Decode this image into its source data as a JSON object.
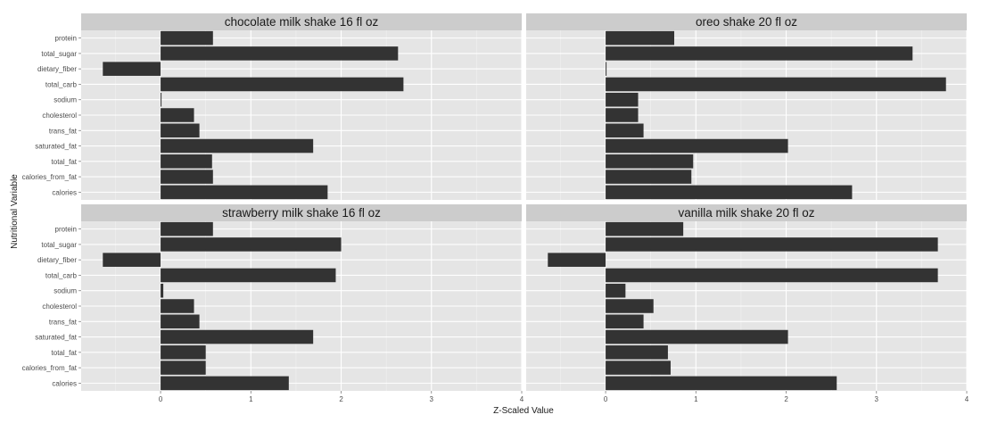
{
  "chart_data": {
    "type": "bar",
    "orientation": "horizontal",
    "facets": "2x2",
    "xlabel": "Z-Scaled Value",
    "ylabel": "Nutritional Variable",
    "xlim": [
      -0.88,
      4.0
    ],
    "xticks": [
      0,
      1,
      2,
      3,
      4
    ],
    "grid": true,
    "categories": [
      "protein",
      "total_sugar",
      "dietary_fiber",
      "total_carb",
      "sodium",
      "cholesterol",
      "trans_fat",
      "saturated_fat",
      "total_fat",
      "calories_from_fat",
      "calories"
    ],
    "panels": [
      {
        "title": "chocolate milk shake 16 fl oz",
        "values": [
          0.58,
          2.63,
          -0.64,
          2.69,
          0.01,
          0.37,
          0.43,
          1.69,
          0.57,
          0.58,
          1.85
        ]
      },
      {
        "title": "oreo shake 20 fl oz",
        "values": [
          0.76,
          3.4,
          0.01,
          3.77,
          0.36,
          0.36,
          0.42,
          2.02,
          0.97,
          0.95,
          2.73
        ]
      },
      {
        "title": "strawberry milk shake 16 fl oz",
        "values": [
          0.58,
          2.0,
          -0.64,
          1.94,
          0.03,
          0.37,
          0.43,
          1.69,
          0.5,
          0.5,
          1.42
        ]
      },
      {
        "title": "vanilla milk shake 20 fl oz",
        "values": [
          0.86,
          3.68,
          -0.64,
          3.68,
          0.22,
          0.53,
          0.42,
          2.02,
          0.69,
          0.72,
          2.56
        ]
      }
    ]
  },
  "colors": {
    "bar": "#333333",
    "panel_bg": "#e5e5e5",
    "strip_bg": "#cccccc",
    "grid_major": "#ffffff",
    "grid_minor": "#f2f2f2",
    "tick_text": "#4d4d4d"
  }
}
